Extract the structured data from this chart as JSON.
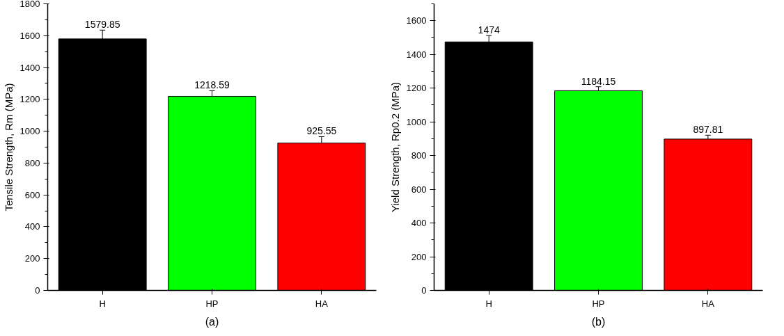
{
  "chart_data": [
    {
      "type": "bar",
      "title": "(a)",
      "categories": [
        "H",
        "HP",
        "HA"
      ],
      "values": [
        1579.85,
        1218.59,
        925.55
      ],
      "colors": [
        "#000000",
        "#00ff00",
        "#ff0000"
      ],
      "errors": [
        55,
        36,
        40
      ],
      "data_labels": true,
      "ylabel": "Tensile Strength, Rm (MPa)",
      "ylim": [
        0,
        1800
      ],
      "yticks": [
        0,
        200,
        400,
        600,
        800,
        1000,
        1200,
        1400,
        1600,
        1800
      ],
      "grid": false
    },
    {
      "type": "bar",
      "title": "(b)",
      "categories": [
        "H",
        "HP",
        "HA"
      ],
      "values": [
        1474,
        1184.15,
        897.81
      ],
      "colors": [
        "#000000",
        "#00ff00",
        "#ff0000"
      ],
      "errors": [
        38,
        24,
        23
      ],
      "data_labels": true,
      "ylabel": "Yield Strength, Rp0.2 (MPa)",
      "ylim": [
        0,
        1700
      ],
      "yticks": [
        0,
        200,
        400,
        600,
        800,
        1000,
        1200,
        1400,
        1600
      ],
      "grid": false
    }
  ]
}
